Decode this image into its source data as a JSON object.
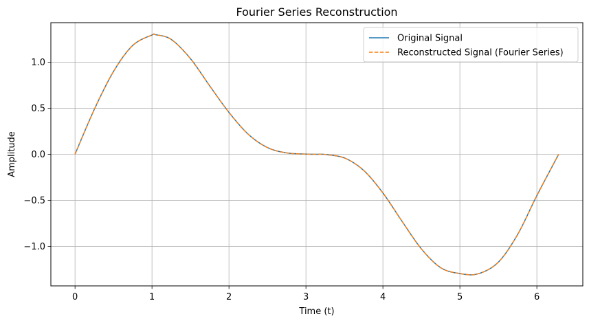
{
  "chart_data": {
    "type": "line",
    "title": "Fourier Series Reconstruction",
    "xlabel": "Time (t)",
    "ylabel": "Amplitude",
    "xlim": [
      -0.314,
      6.597
    ],
    "ylim": [
      -1.43,
      1.43
    ],
    "xticks": [
      0,
      1,
      2,
      3,
      4,
      5,
      6
    ],
    "xtick_labels": [
      "0",
      "1",
      "2",
      "3",
      "4",
      "5",
      "6"
    ],
    "yticks": [
      -1.0,
      -0.5,
      0.0,
      0.5,
      1.0
    ],
    "ytick_labels": [
      "−1.0",
      "−0.5",
      "0.0",
      "0.5",
      "1.0"
    ],
    "grid": true,
    "legend_position": "top-right",
    "x": [
      0,
      0.25,
      0.5,
      0.75,
      1.0,
      1.047,
      1.25,
      1.5,
      1.75,
      2.0,
      2.25,
      2.5,
      2.75,
      3.0,
      3.142,
      3.25,
      3.5,
      3.75,
      4.0,
      4.25,
      4.5,
      4.75,
      5.0,
      5.236,
      5.5,
      5.75,
      6.0,
      6.283
    ],
    "series": [
      {
        "name": "Original Signal",
        "color": "#1f77b4",
        "style": "solid",
        "values": [
          0.0,
          0.487,
          0.9,
          1.183,
          1.296,
          1.299,
          1.248,
          1.039,
          0.743,
          0.455,
          0.218,
          0.073,
          0.015,
          0.002,
          0.0,
          -0.002,
          -0.04,
          -0.175,
          -0.42,
          -0.73,
          -1.028,
          -1.232,
          -1.296,
          -1.299,
          -1.172,
          -0.872,
          -0.449,
          0.0
        ]
      },
      {
        "name": "Reconstructed Signal (Fourier Series)",
        "color": "#ff7f0e",
        "style": "dashed",
        "values": [
          0.0,
          0.487,
          0.9,
          1.183,
          1.296,
          1.299,
          1.248,
          1.039,
          0.743,
          0.455,
          0.218,
          0.073,
          0.015,
          0.002,
          0.0,
          -0.002,
          -0.04,
          -0.175,
          -0.42,
          -0.73,
          -1.028,
          -1.232,
          -1.296,
          -1.299,
          -1.172,
          -0.872,
          -0.449,
          0.0
        ]
      }
    ]
  }
}
